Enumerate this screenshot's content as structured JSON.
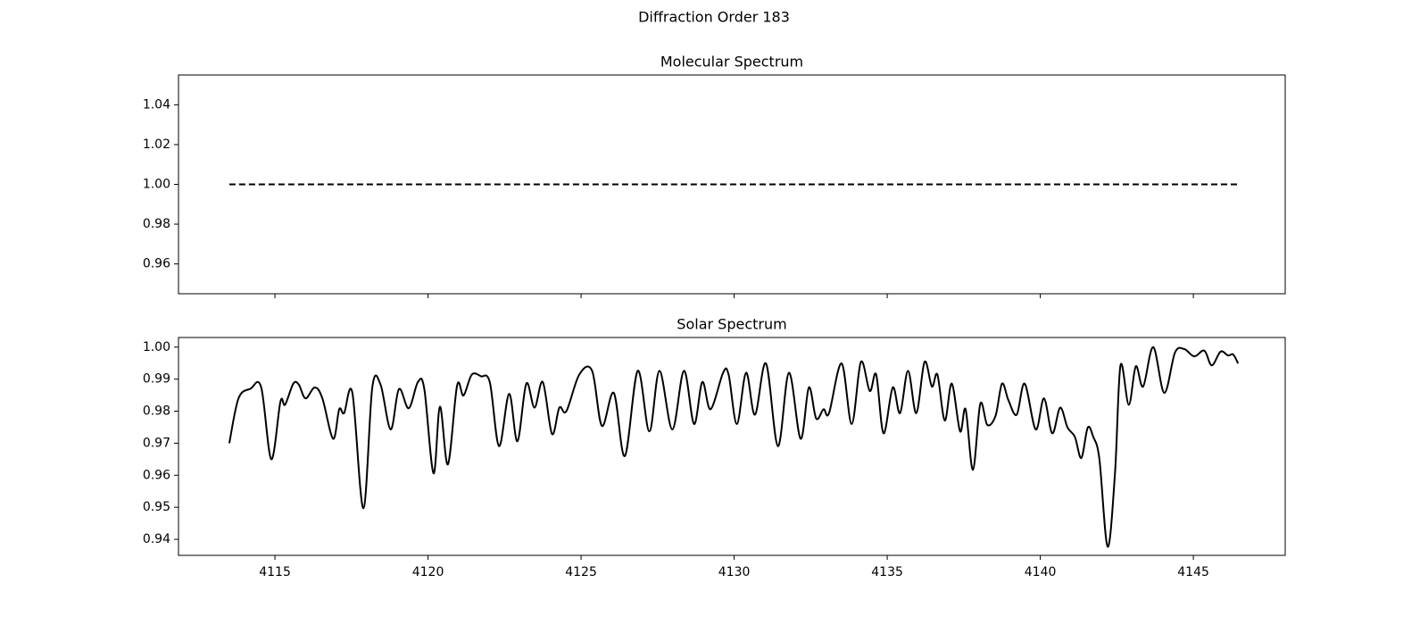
{
  "title": "Diffraction Order 183",
  "chart_data": [
    {
      "type": "line",
      "title": "Molecular Spectrum",
      "x": [
        4113.51,
        4146.46
      ],
      "series": [
        {
          "color": "#000000",
          "linestyle": "dashed",
          "values": [
            1,
            1
          ]
        }
      ],
      "xlim": [
        4111.85,
        4148.0
      ],
      "ylim": [
        0.945,
        1.055
      ],
      "xticks": [
        4115,
        4120,
        4125,
        4130,
        4135,
        4140,
        4145
      ],
      "xtick_labels": false,
      "yticks": [
        0.96,
        0.98,
        {
          "value": 1,
          "label": "1.00"
        },
        1.02,
        1.04
      ]
    },
    {
      "type": "line",
      "title": "Solar Spectrum",
      "x": [
        4113.51,
        4113.81,
        4114.2,
        4114.55,
        4114.88,
        4115.18,
        4115.33,
        4115.6,
        4115.78,
        4116.0,
        4116.3,
        4116.55,
        4116.9,
        4117.1,
        4117.26,
        4117.53,
        4117.89,
        4118.18,
        4118.45,
        4118.78,
        4119.05,
        4119.37,
        4119.67,
        4119.88,
        4120.18,
        4120.39,
        4120.65,
        4120.95,
        4121.16,
        4121.43,
        4121.73,
        4122.02,
        4122.32,
        4122.65,
        4122.92,
        4123.21,
        4123.48,
        4123.75,
        4124.05,
        4124.29,
        4124.52,
        4124.94,
        4125.36,
        4125.68,
        4126.07,
        4126.43,
        4126.85,
        4127.23,
        4127.56,
        4127.98,
        4128.36,
        4128.69,
        4128.96,
        4129.23,
        4129.64,
        4129.82,
        4130.09,
        4130.39,
        4130.68,
        4131.04,
        4131.43,
        4131.79,
        4132.17,
        4132.44,
        4132.68,
        4132.92,
        4133.1,
        4133.51,
        4133.84,
        4134.14,
        4134.43,
        4134.64,
        4134.88,
        4135.18,
        4135.42,
        4135.68,
        4135.95,
        4136.22,
        4136.46,
        4136.64,
        4136.88,
        4137.11,
        4137.38,
        4137.56,
        4137.8,
        4138.04,
        4138.27,
        4138.54,
        4138.75,
        4138.96,
        4139.23,
        4139.49,
        4139.85,
        4140.12,
        4140.39,
        4140.65,
        4140.89,
        4141.13,
        4141.34,
        4141.55,
        4141.73,
        4141.93,
        4142.2,
        4142.44,
        4142.62,
        4142.89,
        4143.12,
        4143.36,
        4143.69,
        4144.05,
        4144.4,
        4144.7,
        4145.03,
        4145.36,
        4145.6,
        4145.89,
        4146.13,
        4146.3,
        4146.46
      ],
      "series": [
        {
          "color": "#000000",
          "linestyle": "solid",
          "values": [
            0.97,
            0.984,
            0.987,
            0.9875,
            0.965,
            0.983,
            0.982,
            0.9886,
            0.9883,
            0.984,
            0.9874,
            0.984,
            0.9714,
            0.9806,
            0.9794,
            0.9857,
            0.9497,
            0.9874,
            0.9883,
            0.9743,
            0.9869,
            0.9809,
            0.9891,
            0.9869,
            0.9606,
            0.9814,
            0.9634,
            0.988,
            0.9849,
            0.9914,
            0.9909,
            0.989,
            0.9691,
            0.9854,
            0.9706,
            0.9886,
            0.9811,
            0.9891,
            0.9729,
            0.9811,
            0.98,
            0.9914,
            0.9926,
            0.9754,
            0.9857,
            0.966,
            0.9926,
            0.9737,
            0.9926,
            0.9743,
            0.9926,
            0.976,
            0.9891,
            0.9806,
            0.992,
            0.9914,
            0.976,
            0.992,
            0.9789,
            0.9949,
            0.9691,
            0.992,
            0.9714,
            0.9874,
            0.9777,
            0.9806,
            0.9794,
            0.9949,
            0.976,
            0.9954,
            0.9863,
            0.9914,
            0.9731,
            0.9874,
            0.9794,
            0.9926,
            0.9794,
            0.9954,
            0.9877,
            0.9914,
            0.9771,
            0.9886,
            0.9737,
            0.9806,
            0.9617,
            0.9823,
            0.9757,
            0.9786,
            0.9886,
            0.9834,
            0.9789,
            0.9886,
            0.9743,
            0.984,
            0.9731,
            0.9811,
            0.9749,
            0.972,
            0.9654,
            0.9749,
            0.972,
            0.9651,
            0.9377,
            0.9606,
            0.9943,
            0.982,
            0.994,
            0.9877,
            1.0,
            0.9857,
            0.9983,
            0.9994,
            0.9971,
            0.9989,
            0.9943,
            0.9986,
            0.9974,
            0.9977,
            0.9949
          ]
        }
      ],
      "xlim": [
        4111.85,
        4148.0
      ],
      "ylim": [
        0.935,
        1.003
      ],
      "xticks": [
        4115,
        4120,
        4125,
        4130,
        4135,
        4140,
        4145
      ],
      "yticks": [
        0.94,
        0.95,
        0.96,
        0.97,
        0.98,
        0.99,
        {
          "value": 1,
          "label": "1.00"
        }
      ]
    }
  ]
}
